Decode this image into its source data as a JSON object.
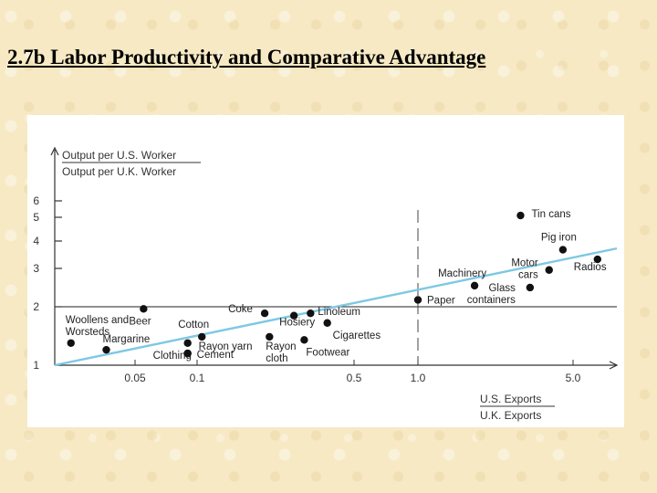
{
  "slide": {
    "title": "2.7b Labor Productivity and Comparative Advantage"
  },
  "chart_data": {
    "type": "scatter",
    "title": "",
    "ylabel": [
      "Output per U.S. Worker",
      "Output per U.K. Worker"
    ],
    "xlabel": [
      "U.S. Exports",
      "U.K. Exports"
    ],
    "x_scale": "log",
    "y_scale": "log",
    "x_ticks": [
      {
        "value": 0.05,
        "label": "0.05"
      },
      {
        "value": 0.1,
        "label": "0.1"
      },
      {
        "value": 0.5,
        "label": "0.5"
      },
      {
        "value": 1.0,
        "label": "1.0"
      },
      {
        "value": 5.0,
        "label": "5.0"
      }
    ],
    "y_ticks": [
      {
        "value": 1,
        "label": "1"
      },
      {
        "value": 2,
        "label": "2"
      },
      {
        "value": 3,
        "label": "3"
      },
      {
        "value": 4,
        "label": "4"
      },
      {
        "value": 5,
        "label": "5"
      },
      {
        "value": 6,
        "label": "6"
      }
    ],
    "reference_lines": {
      "x": 1.0,
      "y": 2
    },
    "trend_line": {
      "color": "#7ec8e3",
      "points": [
        [
          0.012,
          1.0
        ],
        [
          8.0,
          3.7
        ]
      ]
    },
    "point_color": "#111111",
    "points": [
      {
        "label": "Tin cans",
        "x": 2.9,
        "y": 5.1
      },
      {
        "label": "Pig iron",
        "x": 4.5,
        "y": 3.65
      },
      {
        "label": "Radios",
        "x": 6.5,
        "y": 3.3
      },
      {
        "label": "Motor cars",
        "x": 3.9,
        "y": 2.95
      },
      {
        "label": "Glass containers",
        "x": 3.2,
        "y": 2.45
      },
      {
        "label": "Machinery",
        "x": 1.8,
        "y": 2.5
      },
      {
        "label": "Paper",
        "x": 1.0,
        "y": 2.15
      },
      {
        "label": "Woollens and Worsteds",
        "x": 0.016,
        "y": 1.3
      },
      {
        "label": "Margarine",
        "x": 0.03,
        "y": 1.2
      },
      {
        "label": "Beer",
        "x": 0.055,
        "y": 1.95
      },
      {
        "label": "Clothing",
        "x": 0.09,
        "y": 1.15
      },
      {
        "label": "Cotton",
        "x": 0.105,
        "y": 1.4
      },
      {
        "label": "Rayon yarn",
        "x": 0.09,
        "y": 1.3
      },
      {
        "label": "Cement",
        "x": 0.09,
        "y": 1.15
      },
      {
        "label": "Coke",
        "x": 0.2,
        "y": 1.85
      },
      {
        "label": "Rayon cloth",
        "x": 0.21,
        "y": 1.4
      },
      {
        "label": "Hosiery",
        "x": 0.27,
        "y": 1.8
      },
      {
        "label": "Linoleum",
        "x": 0.32,
        "y": 1.85
      },
      {
        "label": "Cigarettes",
        "x": 0.38,
        "y": 1.65
      },
      {
        "label": "Footwear",
        "x": 0.3,
        "y": 1.35
      }
    ]
  }
}
